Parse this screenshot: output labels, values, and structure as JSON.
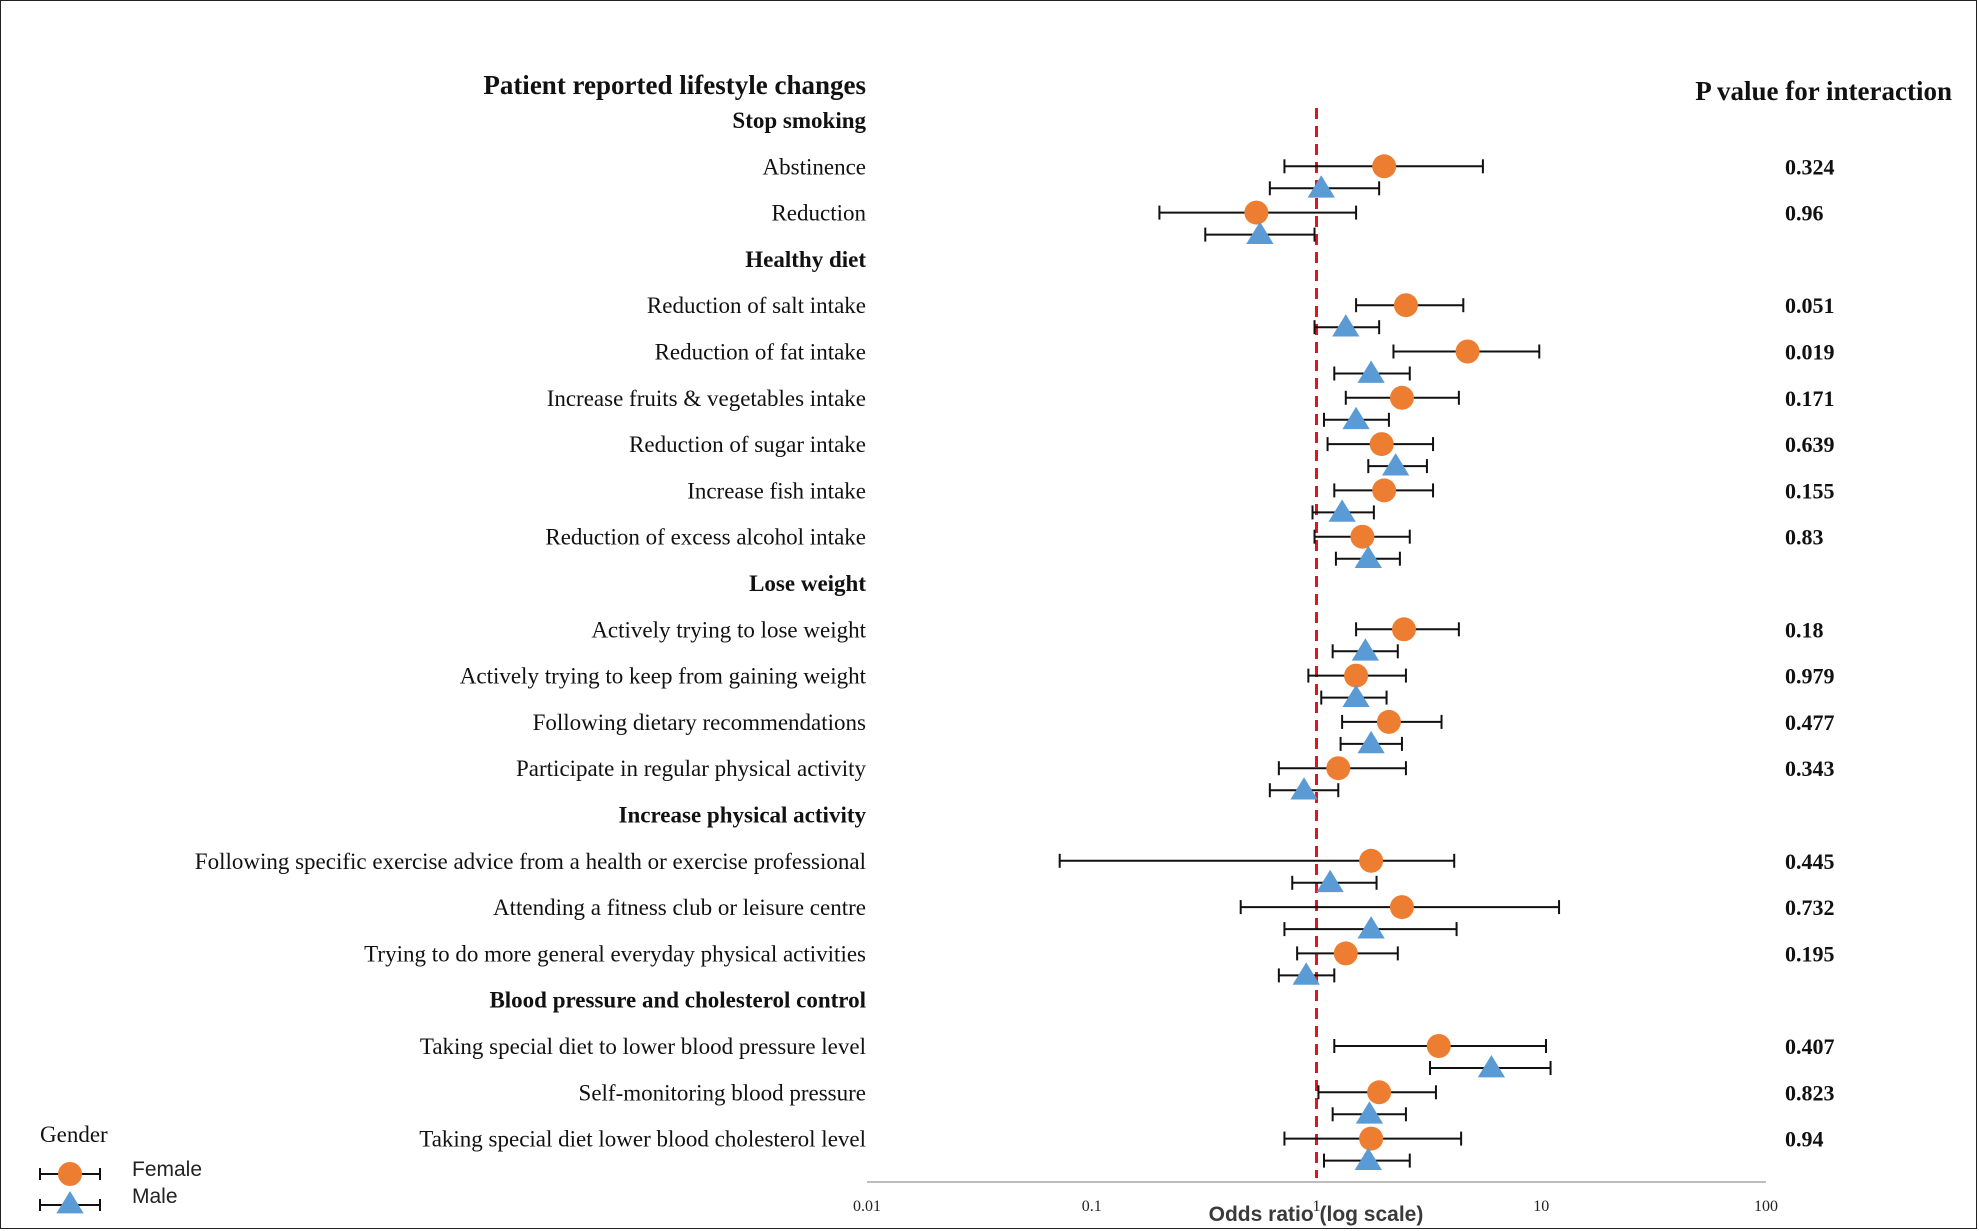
{
  "chart_data": {
    "type": "forest",
    "title_left": "Patient reported lifestyle changes",
    "title_right": "P value for interaction",
    "xlabel": "Odds ratio (log scale)",
    "x_scale": "log",
    "xlim": [
      0.01,
      100
    ],
    "x_ticks": [
      {
        "value": 0.01,
        "label": "0.01"
      },
      {
        "value": 0.1,
        "label": "0.1"
      },
      {
        "value": 1,
        "label": "1"
      },
      {
        "value": 10,
        "label": "10"
      },
      {
        "value": 100,
        "label": "100"
      }
    ],
    "reference_line": 1,
    "legend": {
      "title": "Gender",
      "placement": "bottom-left",
      "entries": [
        {
          "name": "Female",
          "marker": "circle",
          "color": "#ed7d31"
        },
        {
          "name": "Male",
          "marker": "triangle",
          "color": "#5b9bd5"
        }
      ]
    },
    "rows": [
      {
        "kind": "section",
        "label": "Stop smoking"
      },
      {
        "kind": "item",
        "label": "Abstinence",
        "p": "0.324",
        "female": {
          "or": 2.0,
          "lo": 0.72,
          "hi": 5.5
        },
        "male": {
          "or": 1.05,
          "lo": 0.62,
          "hi": 1.9
        }
      },
      {
        "kind": "item",
        "label": "Reduction",
        "p": "0.96",
        "female": {
          "or": 0.54,
          "lo": 0.2,
          "hi": 1.5
        },
        "male": {
          "or": 0.56,
          "lo": 0.32,
          "hi": 0.98
        }
      },
      {
        "kind": "section",
        "label": "Healthy diet"
      },
      {
        "kind": "item",
        "label": "Reduction of salt intake",
        "p": "0.051",
        "female": {
          "or": 2.5,
          "lo": 1.5,
          "hi": 4.5
        },
        "male": {
          "or": 1.35,
          "lo": 0.98,
          "hi": 1.9
        }
      },
      {
        "kind": "item",
        "label": "Reduction of fat intake",
        "p": "0.019",
        "female": {
          "or": 4.7,
          "lo": 2.2,
          "hi": 9.8
        },
        "male": {
          "or": 1.75,
          "lo": 1.2,
          "hi": 2.6
        }
      },
      {
        "kind": "item",
        "label": "Increase fruits & vegetables intake",
        "p": "0.171",
        "female": {
          "or": 2.4,
          "lo": 1.35,
          "hi": 4.3
        },
        "male": {
          "or": 1.5,
          "lo": 1.08,
          "hi": 2.1
        }
      },
      {
        "kind": "item",
        "label": "Reduction of sugar intake",
        "p": "0.639",
        "female": {
          "or": 1.95,
          "lo": 1.12,
          "hi": 3.3
        },
        "male": {
          "or": 2.25,
          "lo": 1.7,
          "hi": 3.1
        }
      },
      {
        "kind": "item",
        "label": "Increase fish intake",
        "p": "0.155",
        "female": {
          "or": 2.0,
          "lo": 1.2,
          "hi": 3.3
        },
        "male": {
          "or": 1.3,
          "lo": 0.96,
          "hi": 1.8
        }
      },
      {
        "kind": "item",
        "label": "Reduction of excess alcohol intake",
        "p": "0.83",
        "female": {
          "or": 1.6,
          "lo": 0.98,
          "hi": 2.6
        },
        "male": {
          "or": 1.7,
          "lo": 1.22,
          "hi": 2.35
        }
      },
      {
        "kind": "section",
        "label": "Lose weight"
      },
      {
        "kind": "item",
        "label": "Actively trying to lose weight",
        "p": "0.18",
        "female": {
          "or": 2.45,
          "lo": 1.5,
          "hi": 4.3
        },
        "male": {
          "or": 1.65,
          "lo": 1.18,
          "hi": 2.3
        }
      },
      {
        "kind": "item",
        "label": "Actively trying to keep from gaining weight",
        "p": "0.979",
        "female": {
          "or": 1.5,
          "lo": 0.92,
          "hi": 2.5
        },
        "male": {
          "or": 1.5,
          "lo": 1.05,
          "hi": 2.05
        }
      },
      {
        "kind": "item",
        "label": "Following dietary recommendations",
        "p": "0.477",
        "female": {
          "or": 2.1,
          "lo": 1.3,
          "hi": 3.6
        },
        "male": {
          "or": 1.75,
          "lo": 1.28,
          "hi": 2.4
        }
      },
      {
        "kind": "item",
        "label": "Participate in regular physical activity",
        "p": "0.343",
        "female": {
          "or": 1.25,
          "lo": 0.68,
          "hi": 2.5
        },
        "male": {
          "or": 0.88,
          "lo": 0.62,
          "hi": 1.25
        }
      },
      {
        "kind": "section",
        "label": "Increase physical activity"
      },
      {
        "kind": "item",
        "label": "Following specific exercise advice from a health or exercise professional",
        "p": "0.445",
        "female": {
          "or": 1.75,
          "lo": 0.072,
          "hi": 4.1
        },
        "male": {
          "or": 1.15,
          "lo": 0.78,
          "hi": 1.85
        }
      },
      {
        "kind": "item",
        "label": "Attending a fitness club or leisure centre",
        "p": "0.732",
        "female": {
          "or": 2.4,
          "lo": 0.46,
          "hi": 12.0
        },
        "male": {
          "or": 1.75,
          "lo": 0.72,
          "hi": 4.2
        }
      },
      {
        "kind": "item",
        "label": "Trying to do more general everyday physical activities",
        "p": "0.195",
        "female": {
          "or": 1.35,
          "lo": 0.82,
          "hi": 2.3
        },
        "male": {
          "or": 0.9,
          "lo": 0.68,
          "hi": 1.2
        }
      },
      {
        "kind": "section",
        "label": "Blood pressure and cholesterol control"
      },
      {
        "kind": "item",
        "label": "Taking special diet to lower blood pressure level",
        "p": "0.407",
        "female": {
          "or": 3.5,
          "lo": 1.2,
          "hi": 10.5
        },
        "male": {
          "or": 6.0,
          "lo": 3.2,
          "hi": 11.0
        }
      },
      {
        "kind": "item",
        "label": "Self-monitoring blood pressure",
        "p": "0.823",
        "female": {
          "or": 1.9,
          "lo": 1.02,
          "hi": 3.4
        },
        "male": {
          "or": 1.72,
          "lo": 1.18,
          "hi": 2.5
        }
      },
      {
        "kind": "item",
        "label": "Taking special diet lower blood cholesterol level",
        "p": "0.94",
        "female": {
          "or": 1.75,
          "lo": 0.72,
          "hi": 4.4
        },
        "male": {
          "or": 1.7,
          "lo": 1.08,
          "hi": 2.6
        }
      }
    ]
  }
}
